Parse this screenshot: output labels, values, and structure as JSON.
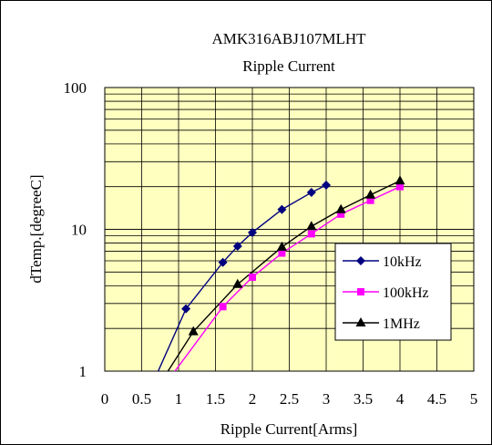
{
  "chart_data": {
    "type": "line",
    "title": "AMK316ABJ107MLHT",
    "subtitle": "Ripple Current",
    "xlabel": "Ripple Current[Arms]",
    "ylabel": "dTemp.[degreeC]",
    "xlim": [
      0,
      5
    ],
    "ylim": [
      1,
      100
    ],
    "yscale": "log",
    "x_ticks": [
      "0",
      "0.5",
      "1",
      "1.5",
      "2",
      "2.5",
      "3",
      "3.5",
      "4",
      "4.5",
      "5"
    ],
    "y_ticks": [
      "1",
      "10",
      "100"
    ],
    "grid": true,
    "plot_background": "#ffffc0",
    "legend_position": "lower-right",
    "series": [
      {
        "name": "10kHz",
        "color": "#000080",
        "marker": "diamond",
        "x": [
          0.65,
          1.1,
          1.6,
          1.8,
          2.0,
          2.4,
          2.8,
          3.0
        ],
        "y": [
          0.82,
          2.75,
          5.85,
          7.6,
          9.5,
          13.8,
          18.2,
          20.5
        ],
        "marker_from_index": 1
      },
      {
        "name": "100kHz",
        "color": "#ff00ff",
        "marker": "square",
        "x": [
          0.85,
          1.6,
          2.0,
          2.4,
          2.8,
          3.2,
          3.6,
          4.0
        ],
        "y": [
          0.85,
          2.85,
          4.6,
          6.8,
          9.3,
          12.8,
          16.0,
          20.0
        ],
        "marker_from_index": 1
      },
      {
        "name": "1MHz",
        "color": "#000000",
        "marker": "triangle",
        "x": [
          0.75,
          1.2,
          1.8,
          2.4,
          2.8,
          3.2,
          3.6,
          4.0
        ],
        "y": [
          0.82,
          1.9,
          4.1,
          7.5,
          10.5,
          13.8,
          17.5,
          22.0
        ],
        "marker_from_index": 1
      }
    ]
  }
}
